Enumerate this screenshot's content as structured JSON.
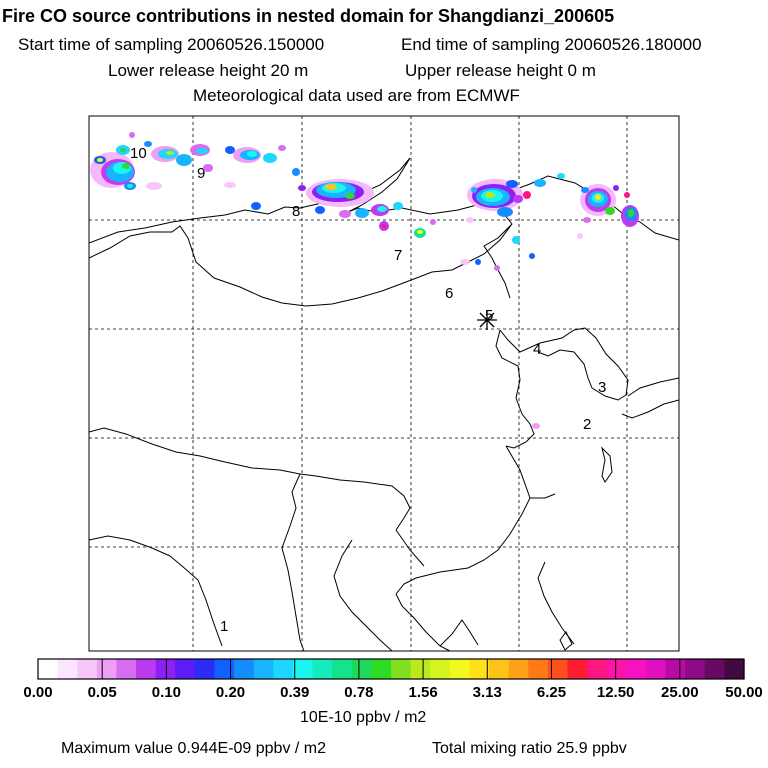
{
  "header": {
    "title": "Fire CO source contributions in nested domain for Shangdianzi_200605",
    "start_label": "Start time of sampling 20060526.150000",
    "end_label": "End time of sampling 20060526.180000",
    "lower_label": "Lower release height   20 m",
    "upper_label": "Upper release height    0 m",
    "met_label": "Meteorological data used are from ECMWF"
  },
  "map": {
    "trajectory_labels": [
      "10",
      "9",
      "8",
      "7",
      "6",
      "5",
      "4",
      "3",
      "2",
      "1"
    ],
    "station_marker": "asterisk-icon"
  },
  "colorbar": {
    "ticks": [
      "0.00",
      "0.05",
      "0.10",
      "0.20",
      "0.39",
      "0.78",
      "1.56",
      "3.13",
      "6.25",
      "12.50",
      "25.00",
      "50.00"
    ],
    "colors": [
      "#ffffff",
      "#fde4ff",
      "#f7c7fb",
      "#ee9ef5",
      "#d76df0",
      "#bc3af0",
      "#8d21f3",
      "#5b1cf6",
      "#2b2cf7",
      "#1460ff",
      "#168cff",
      "#19b3ff",
      "#1ed6ff",
      "#1af6ee",
      "#14ecbe",
      "#15e38c",
      "#1ed95c",
      "#2edc26",
      "#7fe01f",
      "#b8ea1e",
      "#d6f41f",
      "#f2f91d",
      "#ffe11a",
      "#ffc219",
      "#ffa017",
      "#ff7a16",
      "#ff4f1c",
      "#ff1e30",
      "#ff1680",
      "#ff14a8",
      "#f811c2",
      "#e00fc1",
      "#b90aa8",
      "#8e0a88",
      "#660a62",
      "#420a40"
    ],
    "units": "10E-10 ppbv / m2"
  },
  "footer": {
    "max_label": "Maximum value  0.944E-09 ppbv / m2",
    "total_label": "Total mixing ratio       25.9 ppbv"
  }
}
